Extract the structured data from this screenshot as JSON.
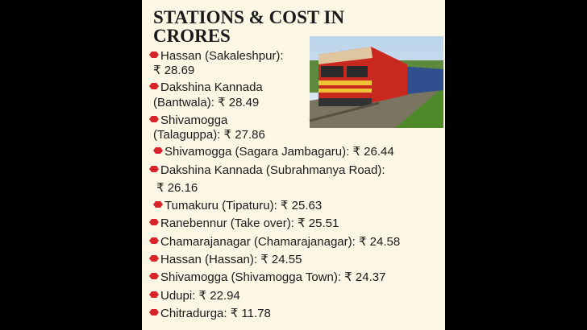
{
  "title": {
    "lines": [
      "STATIONS & COST IN",
      "CRORES"
    ]
  },
  "items": [
    {
      "lines": [
        "Hassan (Sakaleshpur):",
        "₹ 28.69"
      ]
    },
    {
      "lines": [
        "Dakshina Kannada",
        "(Bantwala): ₹ 28.49"
      ]
    },
    {
      "lines": [
        "Shivamogga",
        "(Talaguppa): ₹ 27.86"
      ]
    },
    {
      "lines": [
        "Shivamogga (Sagara Jambagaru): ₹ 26.44"
      ]
    },
    {
      "lines": [
        "Dakshina Kannada (Subrahmanya Road):",
        "₹ 26.16"
      ]
    },
    {
      "lines": [
        "Tumakuru (Tipaturu): ₹ 25.63"
      ]
    },
    {
      "lines": [
        "Ranebennur (Take over): ₹ 25.51"
      ]
    },
    {
      "lines": [
        "Chamarajanagar (Chamarajanagar): ₹ 24.58"
      ]
    },
    {
      "lines": [
        "Hassan (Hassan): ₹ 24.55"
      ]
    },
    {
      "lines": [
        "Shivamogga (Shivamogga Town): ₹ 24.37"
      ]
    },
    {
      "lines": [
        "Udupi: ₹ 22.94"
      ]
    },
    {
      "lines": [
        "Chitradurga: ₹ 11.78"
      ]
    }
  ]
}
